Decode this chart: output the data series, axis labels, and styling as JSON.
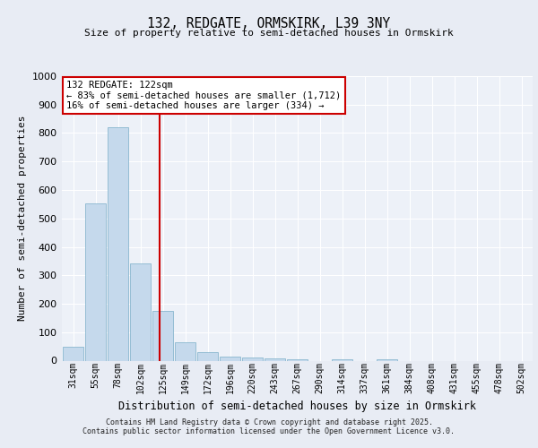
{
  "title1": "132, REDGATE, ORMSKIRK, L39 3NY",
  "title2": "Size of property relative to semi-detached houses in Ormskirk",
  "xlabel": "Distribution of semi-detached houses by size in Ormskirk",
  "ylabel": "Number of semi-detached properties",
  "categories": [
    "31sqm",
    "55sqm",
    "78sqm",
    "102sqm",
    "125sqm",
    "149sqm",
    "172sqm",
    "196sqm",
    "220sqm",
    "243sqm",
    "267sqm",
    "290sqm",
    "314sqm",
    "337sqm",
    "361sqm",
    "384sqm",
    "408sqm",
    "431sqm",
    "455sqm",
    "478sqm",
    "502sqm"
  ],
  "values": [
    50,
    553,
    820,
    343,
    175,
    63,
    30,
    15,
    12,
    8,
    6,
    0,
    5,
    0,
    5,
    0,
    0,
    0,
    0,
    0,
    0
  ],
  "bar_color": "#c5d9ec",
  "bar_edge_color": "#7aaec8",
  "vline_color": "#cc0000",
  "annotation_title": "132 REDGATE: 122sqm",
  "annotation_line1": "← 83% of semi-detached houses are smaller (1,712)",
  "annotation_line2": "16% of semi-detached houses are larger (334) →",
  "ylim": [
    0,
    1000
  ],
  "yticks": [
    0,
    100,
    200,
    300,
    400,
    500,
    600,
    700,
    800,
    900,
    1000
  ],
  "bg_color": "#e8ecf4",
  "plot_bg_color": "#edf1f8",
  "footer1": "Contains HM Land Registry data © Crown copyright and database right 2025.",
  "footer2": "Contains public sector information licensed under the Open Government Licence v3.0."
}
